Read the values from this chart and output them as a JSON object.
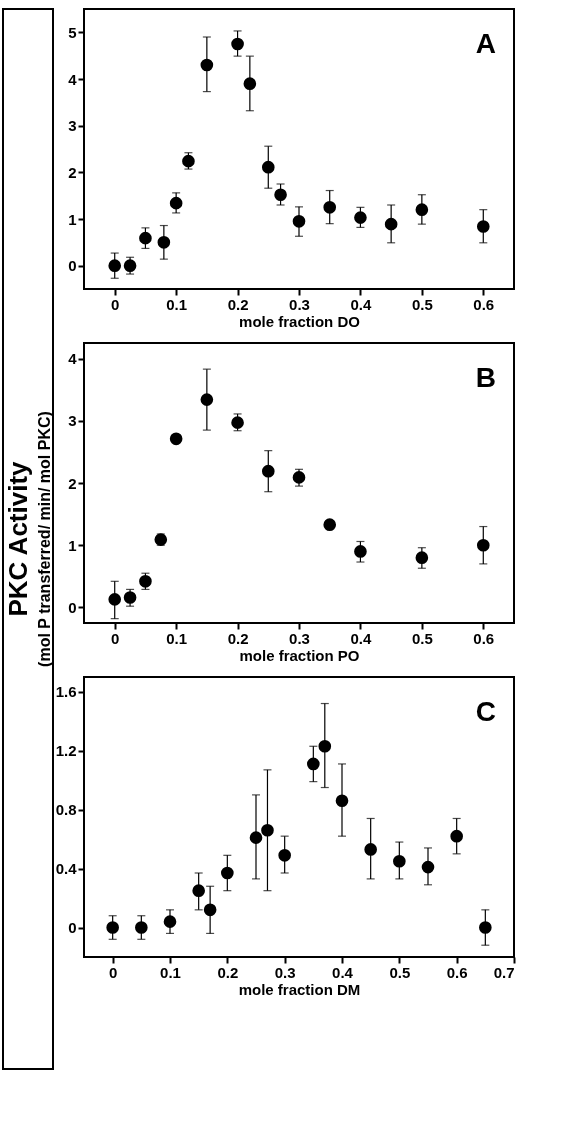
{
  "chart_data": [
    {
      "type": "scatter",
      "xlabel": "mole fraction DO",
      "annotations": [
        "A"
      ],
      "marker": "circle",
      "grid": false,
      "xlim": [
        -0.05,
        0.65
      ],
      "ylim": [
        -0.5,
        5.5
      ],
      "xticks": [
        0,
        0.1,
        0.2,
        0.3,
        0.4,
        0.5,
        0.6
      ],
      "yticks": [
        0,
        1,
        2,
        3,
        4,
        5
      ],
      "x": [
        0,
        0.025,
        0.05,
        0.08,
        0.1,
        0.12,
        0.15,
        0.2,
        0.22,
        0.25,
        0.27,
        0.3,
        0.35,
        0.4,
        0.45,
        0.5,
        0.6
      ],
      "series": [
        {
          "color": "#000000",
          "values": [
            0,
            0,
            0.59,
            0.5,
            1.34,
            2.24,
            4.3,
            4.75,
            3.9,
            2.11,
            1.52,
            0.95,
            1.25,
            1.03,
            0.89,
            1.2,
            0.84
          ],
          "errors": [
            0.27,
            0.18,
            [
              0.37,
              0.81
            ],
            [
              0.14,
              0.86
            ],
            [
              1.13,
              1.56
            ],
            [
              2.07,
              2.42
            ],
            [
              3.73,
              4.9
            ],
            [
              4.49,
              5.03
            ],
            [
              3.32,
              4.49
            ],
            [
              1.66,
              2.56
            ],
            [
              1.3,
              1.75
            ],
            [
              0.63,
              1.26
            ],
            [
              0.9,
              1.61
            ],
            [
              0.82,
              1.25
            ],
            [
              0.49,
              1.3
            ],
            [
              0.89,
              1.52
            ],
            [
              0.49,
              1.2
            ]
          ]
        }
      ]
    },
    {
      "type": "scatter",
      "xlabel": "mole fraction PO",
      "ylabel": "PKC Activity\n(mol P transferred/ min/ mol PKC)",
      "annotations": [
        "B"
      ],
      "marker": "circle",
      "grid": false,
      "xlim": [
        -0.05,
        0.65
      ],
      "ylim": [
        -0.25,
        4.25
      ],
      "xticks": [
        0,
        0.1,
        0.2,
        0.3,
        0.4,
        0.5,
        0.6
      ],
      "yticks": [
        0,
        1,
        2,
        3,
        4
      ],
      "x": [
        0,
        0.025,
        0.05,
        0.075,
        0.1,
        0.15,
        0.2,
        0.25,
        0.3,
        0.35,
        0.4,
        0.5,
        0.6
      ],
      "series": [
        {
          "color": "#000000",
          "values": [
            0.13,
            0.16,
            0.42,
            1.09,
            2.71,
            3.34,
            2.97,
            2.19,
            2.09,
            1.33,
            0.9,
            0.8,
            1.0
          ],
          "errors": [
            [
              -0.18,
              0.42
            ],
            [
              0.02,
              0.29
            ],
            [
              0.29,
              0.55
            ],
            [
              1.0,
              1.18
            ],
            null,
            [
              2.85,
              3.83
            ],
            [
              2.84,
              3.11
            ],
            [
              1.86,
              2.52
            ],
            [
              1.95,
              2.22
            ],
            null,
            [
              0.73,
              1.06
            ],
            [
              0.63,
              0.96
            ],
            [
              0.7,
              1.3
            ]
          ]
        }
      ]
    },
    {
      "type": "scatter",
      "xlabel": "mole fraction DM",
      "annotations": [
        "C"
      ],
      "marker": "circle",
      "grid": false,
      "xlim": [
        -0.05,
        0.7
      ],
      "ylim": [
        -0.2,
        1.7
      ],
      "xticks": [
        0,
        0.1,
        0.2,
        0.3,
        0.4,
        0.5,
        0.6,
        0.7
      ],
      "yticks": [
        0,
        0.4,
        0.8,
        1.2,
        1.6
      ],
      "x": [
        0,
        0.05,
        0.1,
        0.15,
        0.17,
        0.2,
        0.25,
        0.27,
        0.3,
        0.35,
        0.37,
        0.4,
        0.45,
        0.5,
        0.55,
        0.6,
        0.65
      ],
      "series": [
        {
          "color": "#000000",
          "values": [
            0,
            0,
            0.04,
            0.25,
            0.12,
            0.37,
            0.61,
            0.66,
            0.49,
            1.11,
            1.23,
            0.86,
            0.53,
            0.45,
            0.41,
            0.62,
            0
          ],
          "errors": [
            0.08,
            0.08,
            [
              -0.04,
              0.12
            ],
            [
              0.12,
              0.37
            ],
            [
              -0.04,
              0.28
            ],
            [
              0.25,
              0.49
            ],
            [
              0.33,
              0.9
            ],
            [
              0.25,
              1.07
            ],
            [
              0.37,
              0.62
            ],
            [
              0.99,
              1.23
            ],
            [
              0.95,
              1.52
            ],
            [
              0.62,
              1.11
            ],
            [
              0.33,
              0.74
            ],
            [
              0.33,
              0.58
            ],
            [
              0.29,
              0.54
            ],
            [
              0.5,
              0.74
            ],
            [
              -0.12,
              0.12
            ]
          ]
        }
      ]
    }
  ]
}
